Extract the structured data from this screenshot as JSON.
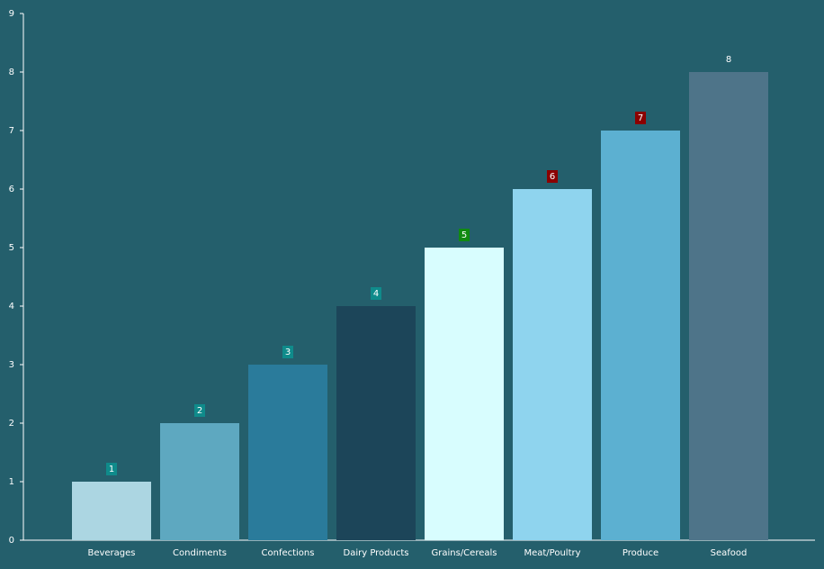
{
  "chart_data": {
    "type": "bar",
    "categories": [
      "Beverages",
      "Condiments",
      "Confections",
      "Dairy Products",
      "Grains/Cereals",
      "Meat/Poultry",
      "Produce",
      "Seafood"
    ],
    "values": [
      1,
      2,
      3,
      4,
      5,
      6,
      7,
      8
    ],
    "colors": [
      "#acd6e2",
      "#5ea8c0",
      "#2a7b9b",
      "#1c4559",
      "#d8fdfe",
      "#8fd4ee",
      "#5cb0d1",
      "#4e7489"
    ],
    "label_colors": [
      "#0f8b8b",
      "#0f8b8b",
      "#0f8b8b",
      "#0f8b8b",
      "#108a10",
      "#8b0000",
      "#8b0000",
      null
    ],
    "ylim": [
      0,
      9
    ],
    "yticks": [
      0,
      1,
      2,
      3,
      4,
      5,
      6,
      7,
      8,
      9
    ],
    "grid": false
  }
}
